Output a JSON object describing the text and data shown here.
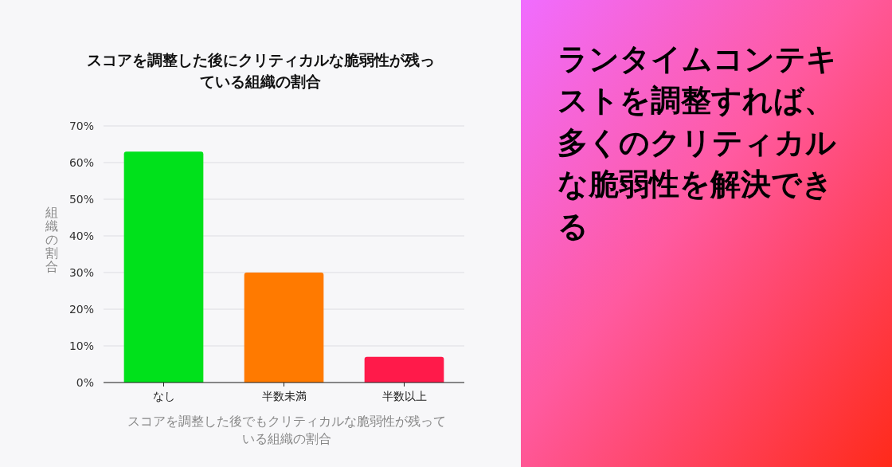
{
  "chart_data": {
    "type": "bar",
    "title": "スコアを調整した後にクリティカルな脆弱性が残っている組織の割合",
    "xlabel": "スコアを調整した後でもクリティカルな脆弱性が残っている組織の割合",
    "ylabel": "組織の割合",
    "categories": [
      "なし",
      "半数未満",
      "半数以上"
    ],
    "values": [
      63,
      30,
      7
    ],
    "colors": [
      "#00e11b",
      "#ff7a00",
      "#ff1a4a"
    ],
    "ylim": [
      0,
      70
    ],
    "yticks": [
      {
        "value": 0,
        "label": "0%"
      },
      {
        "value": 10,
        "label": "10%"
      },
      {
        "value": 20,
        "label": "20%"
      },
      {
        "value": 30,
        "label": "30%"
      },
      {
        "value": 40,
        "label": "40%"
      },
      {
        "value": 50,
        "label": "50%"
      },
      {
        "value": 60,
        "label": "60%"
      },
      {
        "value": 70,
        "label": "70%"
      }
    ],
    "grid": "y",
    "annotations": [
      "ランタイムコンテキストを調整すれば、多くのクリティカルな脆弱性を解決できる"
    ]
  }
}
